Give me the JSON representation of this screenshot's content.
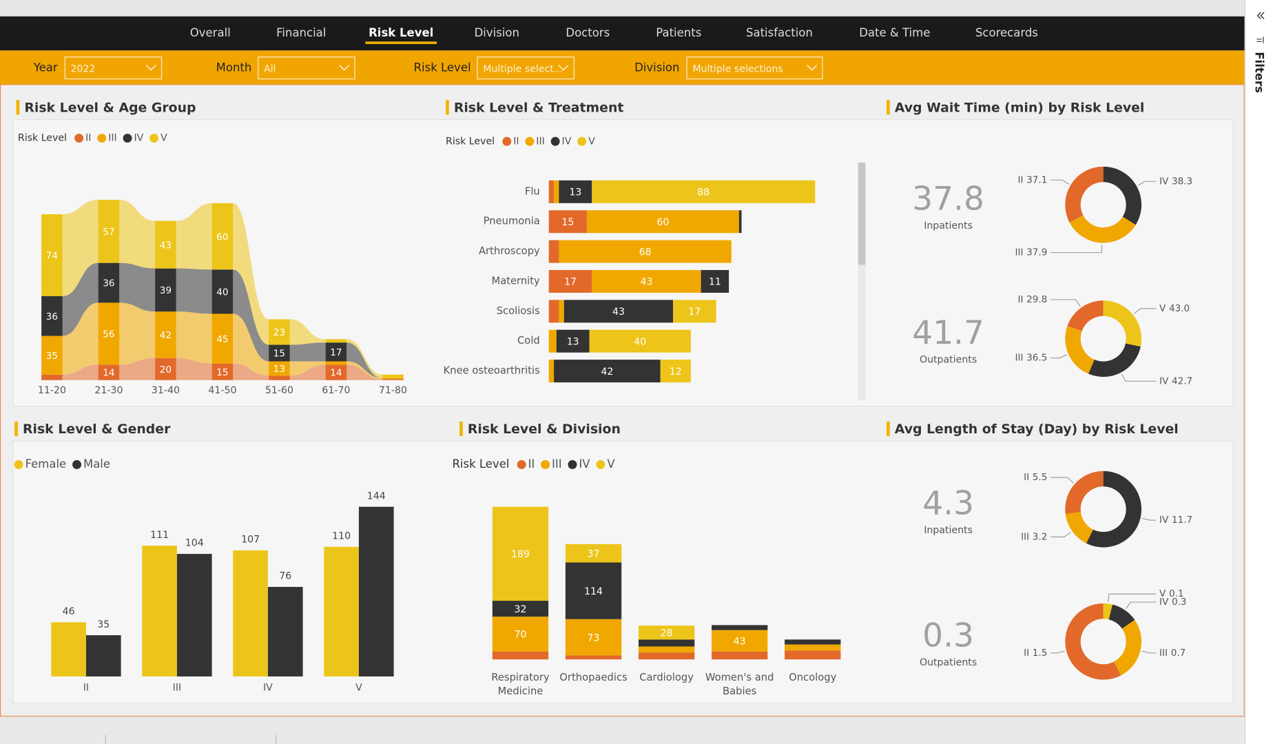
{
  "nav": {
    "tabs": [
      "Overall",
      "Financial",
      "Risk Level",
      "Division",
      "Doctors",
      "Patients",
      "Satisfaction",
      "Date & Time",
      "Scorecards"
    ],
    "active": 2
  },
  "filters": [
    {
      "label": "Year",
      "value": "2022"
    },
    {
      "label": "Month",
      "value": "All"
    },
    {
      "label": "Risk Level",
      "value": "Multiple select..."
    },
    {
      "label": "Division",
      "value": "Multiple selections"
    }
  ],
  "sidebar": {
    "title": "Filters"
  },
  "chart_data": [
    {
      "type": "ribbon",
      "title": "Risk Level & Age Group",
      "legend_title": "Risk Level",
      "categories": [
        "11-20",
        "21-30",
        "31-40",
        "41-50",
        "51-60",
        "61-70",
        "71-80"
      ],
      "series": [
        {
          "name": "II",
          "color": "#e2692a",
          "values": [
            5,
            14,
            20,
            15,
            4,
            14,
            1
          ]
        },
        {
          "name": "III",
          "color": "#f0a800",
          "values": [
            35,
            56,
            42,
            45,
            13,
            3,
            1
          ]
        },
        {
          "name": "IV",
          "color": "#333333",
          "values": [
            36,
            36,
            39,
            40,
            15,
            17,
            0
          ]
        },
        {
          "name": "V",
          "color": "#edc51a",
          "values": [
            74,
            57,
            43,
            60,
            23,
            3,
            3
          ]
        }
      ]
    },
    {
      "type": "bar",
      "orientation": "horizontal",
      "stacked": true,
      "title": "Risk Level & Treatment",
      "legend_title": "Risk Level",
      "categories": [
        "Flu",
        "Pneumonia",
        "Arthroscopy",
        "Maternity",
        "Scoliosis",
        "Cold",
        "Knee osteoarthritis"
      ],
      "series": [
        {
          "name": "II",
          "color": "#e2692a",
          "values": [
            2,
            15,
            4,
            17,
            4,
            0,
            0
          ]
        },
        {
          "name": "III",
          "color": "#f0a800",
          "values": [
            2,
            60,
            68,
            43,
            2,
            3,
            2
          ]
        },
        {
          "name": "IV",
          "color": "#333333",
          "values": [
            13,
            1,
            0,
            11,
            43,
            13,
            42
          ]
        },
        {
          "name": "V",
          "color": "#edc51a",
          "values": [
            88,
            0,
            0,
            0,
            17,
            40,
            12
          ]
        }
      ]
    },
    {
      "type": "donut",
      "title": "Avg Wait Time (min) by Risk Level",
      "panels": [
        {
          "kpi": 37.8,
          "kpi_label": "Inpatients",
          "categories": [
            "II",
            "III",
            "IV"
          ],
          "colors": [
            "#e2692a",
            "#f0a800",
            "#333333"
          ],
          "values": [
            37.1,
            37.9,
            38.3
          ]
        },
        {
          "kpi": 41.7,
          "kpi_label": "Outpatients",
          "categories": [
            "II",
            "III",
            "IV",
            "V"
          ],
          "colors": [
            "#e2692a",
            "#f0a800",
            "#333333",
            "#edc51a"
          ],
          "values": [
            29.8,
            36.5,
            42.7,
            43
          ],
          "value_labels": [
            "29.8",
            "36.5",
            "42.7",
            "43.0"
          ]
        }
      ]
    },
    {
      "type": "bar",
      "orientation": "vertical",
      "stacked": false,
      "title": "Risk Level & Gender",
      "categories": [
        "II",
        "III",
        "IV",
        "V"
      ],
      "series": [
        {
          "name": "Female",
          "color": "#edc51a",
          "values": [
            46,
            111,
            107,
            110
          ]
        },
        {
          "name": "Male",
          "color": "#333333",
          "values": [
            35,
            104,
            76,
            144
          ]
        }
      ]
    },
    {
      "type": "bar",
      "orientation": "vertical",
      "stacked": true,
      "title": "Risk Level & Division",
      "legend_title": "Risk Level",
      "categories": [
        "Respiratory Medicine",
        "Orthopaedics",
        "Cardiology",
        "Women's and Babies",
        "Oncology"
      ],
      "series": [
        {
          "name": "II",
          "color": "#e2692a",
          "values": [
            16,
            8,
            14,
            16,
            18
          ]
        },
        {
          "name": "III",
          "color": "#f0a800",
          "values": [
            70,
            73,
            12,
            43,
            12
          ]
        },
        {
          "name": "IV",
          "color": "#333333",
          "values": [
            32,
            114,
            14,
            10,
            10
          ]
        },
        {
          "name": "V",
          "color": "#edc51a",
          "values": [
            189,
            37,
            28,
            0,
            0
          ]
        }
      ]
    },
    {
      "type": "donut",
      "title": "Avg Length of Stay (Day) by Risk Level",
      "panels": [
        {
          "kpi": 4.3,
          "kpi_label": "Inpatients",
          "categories": [
            "II",
            "III",
            "IV"
          ],
          "colors": [
            "#e2692a",
            "#f0a800",
            "#333333"
          ],
          "values": [
            5.5,
            3.2,
            11.7
          ]
        },
        {
          "kpi": 0.3,
          "kpi_label": "Outpatients",
          "categories": [
            "II",
            "III",
            "IV",
            "V"
          ],
          "colors": [
            "#e2692a",
            "#f0a800",
            "#333333",
            "#edc51a"
          ],
          "values": [
            1.5,
            0.7,
            0.3,
            0.1
          ]
        }
      ]
    }
  ]
}
